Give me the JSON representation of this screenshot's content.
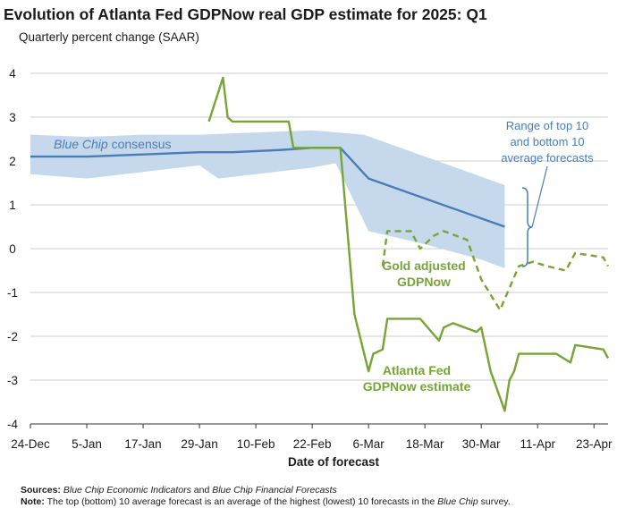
{
  "title": "Evolution of Atlanta Fed GDPNow real GDP estimate for 2025: Q1",
  "subtitle": "Quarterly percent change (SAAR)",
  "colors": {
    "blue": "#4a7db8",
    "band": "#c6d9ec",
    "green": "#76a535",
    "grid": "#cccccc",
    "text": "#1a1a1a"
  },
  "chart_data": {
    "type": "line",
    "title": "Evolution of Atlanta Fed GDPNow real GDP estimate for 2025: Q1",
    "subtitle": "Quarterly percent change (SAAR)",
    "xlabel": "Date of forecast",
    "ylabel": "",
    "xlim": [
      "2024-12-24",
      "2025-04-26"
    ],
    "ylim": [
      -4,
      4
    ],
    "yticks": [
      4,
      3,
      2,
      1,
      0,
      -1,
      -2,
      -3,
      -4
    ],
    "xticks": [
      {
        "date": "2024-12-24",
        "label": "24-Dec"
      },
      {
        "date": "2025-01-05",
        "label": "5-Jan"
      },
      {
        "date": "2025-01-17",
        "label": "17-Jan"
      },
      {
        "date": "2025-01-29",
        "label": "29-Jan"
      },
      {
        "date": "2025-02-10",
        "label": "10-Feb"
      },
      {
        "date": "2025-02-22",
        "label": "22-Feb"
      },
      {
        "date": "2025-03-06",
        "label": "6-Mar"
      },
      {
        "date": "2025-03-18",
        "label": "18-Mar"
      },
      {
        "date": "2025-03-30",
        "label": "30-Mar"
      },
      {
        "date": "2025-04-11",
        "label": "11-Apr"
      },
      {
        "date": "2025-04-23",
        "label": "23-Apr"
      }
    ],
    "grid": "horizontal",
    "band": {
      "name": "Range of top 10 and bottom 10 average forecasts",
      "upper": [
        [
          "2024-12-24",
          2.6
        ],
        [
          "2025-01-05",
          2.55
        ],
        [
          "2025-01-17",
          2.6
        ],
        [
          "2025-01-29",
          2.6
        ],
        [
          "2025-02-10",
          2.65
        ],
        [
          "2025-02-22",
          2.7
        ],
        [
          "2025-03-05",
          2.6
        ],
        [
          "2025-04-04",
          1.45
        ]
      ],
      "lower": [
        [
          "2024-12-24",
          1.7
        ],
        [
          "2025-01-05",
          1.6
        ],
        [
          "2025-01-17",
          1.75
        ],
        [
          "2025-01-29",
          1.9
        ],
        [
          "2025-02-02",
          1.6
        ],
        [
          "2025-02-10",
          1.7
        ],
        [
          "2025-02-22",
          1.85
        ],
        [
          "2025-02-27",
          1.95
        ],
        [
          "2025-03-06",
          0.4
        ],
        [
          "2025-03-18",
          0.1
        ],
        [
          "2025-03-30",
          -0.25
        ],
        [
          "2025-04-04",
          -0.45
        ]
      ]
    },
    "series": [
      {
        "name": "Blue Chip consensus",
        "color": "#4a7db8",
        "style": "solid",
        "points": [
          [
            "2024-12-24",
            2.1
          ],
          [
            "2025-01-05",
            2.1
          ],
          [
            "2025-01-17",
            2.15
          ],
          [
            "2025-01-29",
            2.2
          ],
          [
            "2025-02-05",
            2.2
          ],
          [
            "2025-02-15",
            2.25
          ],
          [
            "2025-02-22",
            2.3
          ],
          [
            "2025-02-28",
            2.3
          ],
          [
            "2025-03-06",
            1.6
          ],
          [
            "2025-04-04",
            0.5
          ]
        ]
      },
      {
        "name": "Atlanta Fed GDPNow estimate",
        "color": "#76a535",
        "style": "solid",
        "points": [
          [
            "2025-01-31",
            2.9
          ],
          [
            "2025-02-03",
            3.9
          ],
          [
            "2025-02-04",
            3.0
          ],
          [
            "2025-02-05",
            2.9
          ],
          [
            "2025-02-17",
            2.9
          ],
          [
            "2025-02-18",
            2.3
          ],
          [
            "2025-02-28",
            2.3
          ],
          [
            "2025-03-03",
            -1.5
          ],
          [
            "2025-03-06",
            -2.8
          ],
          [
            "2025-03-07",
            -2.4
          ],
          [
            "2025-03-09",
            -2.3
          ],
          [
            "2025-03-10",
            -1.6
          ],
          [
            "2025-03-17",
            -1.6
          ],
          [
            "2025-03-21",
            -2.1
          ],
          [
            "2025-03-22",
            -1.8
          ],
          [
            "2025-03-24",
            -1.7
          ],
          [
            "2025-03-29",
            -1.9
          ],
          [
            "2025-03-30",
            -1.8
          ],
          [
            "2025-04-01",
            -2.8
          ],
          [
            "2025-04-04",
            -3.7
          ],
          [
            "2025-04-05",
            -3.0
          ],
          [
            "2025-04-06",
            -2.8
          ],
          [
            "2025-04-07",
            -2.4
          ],
          [
            "2025-04-15",
            -2.4
          ],
          [
            "2025-04-18",
            -2.6
          ],
          [
            "2025-04-19",
            -2.2
          ],
          [
            "2025-04-25",
            -2.3
          ],
          [
            "2025-04-26",
            -2.5
          ]
        ]
      },
      {
        "name": "Gold adjusted GDPNow",
        "color": "#76a535",
        "style": "dashed",
        "points": [
          [
            "2025-03-09",
            -0.4
          ],
          [
            "2025-03-10",
            0.4
          ],
          [
            "2025-03-15",
            0.4
          ],
          [
            "2025-03-17",
            0.0
          ],
          [
            "2025-03-20",
            0.3
          ],
          [
            "2025-03-22",
            0.4
          ],
          [
            "2025-03-27",
            0.2
          ],
          [
            "2025-03-30",
            -0.7
          ],
          [
            "2025-04-03",
            -1.4
          ],
          [
            "2025-04-05",
            -0.9
          ],
          [
            "2025-04-07",
            -0.4
          ],
          [
            "2025-04-10",
            -0.3
          ],
          [
            "2025-04-13",
            -0.4
          ],
          [
            "2025-04-17",
            -0.5
          ],
          [
            "2025-04-19",
            -0.1
          ],
          [
            "2025-04-25",
            -0.2
          ],
          [
            "2025-04-26",
            -0.4
          ]
        ]
      }
    ],
    "annotations": {
      "blue_chip_italic": "Blue Chip",
      "blue_chip_rest": " consensus",
      "range_lines": [
        "Range of top 10",
        "and bottom 10",
        "average forecasts"
      ],
      "gold_lines": [
        "Gold adjusted",
        "GDPNow"
      ],
      "gdpnow_lines": [
        "Atlanta Fed",
        "GDPNow estimate"
      ]
    }
  },
  "notes": {
    "sources_label": "Sources:",
    "source1": "Blue Chip Economic Indicators",
    "and": " and ",
    "source2": "Blue Chip Financial Forecasts",
    "note_label": "Note:",
    "note_text1": " The top (bottom) 10 average forecast is an average of the highest (lowest) 10 forecasts in the ",
    "note_italic": "Blue Chip",
    "note_text2": " survey."
  }
}
